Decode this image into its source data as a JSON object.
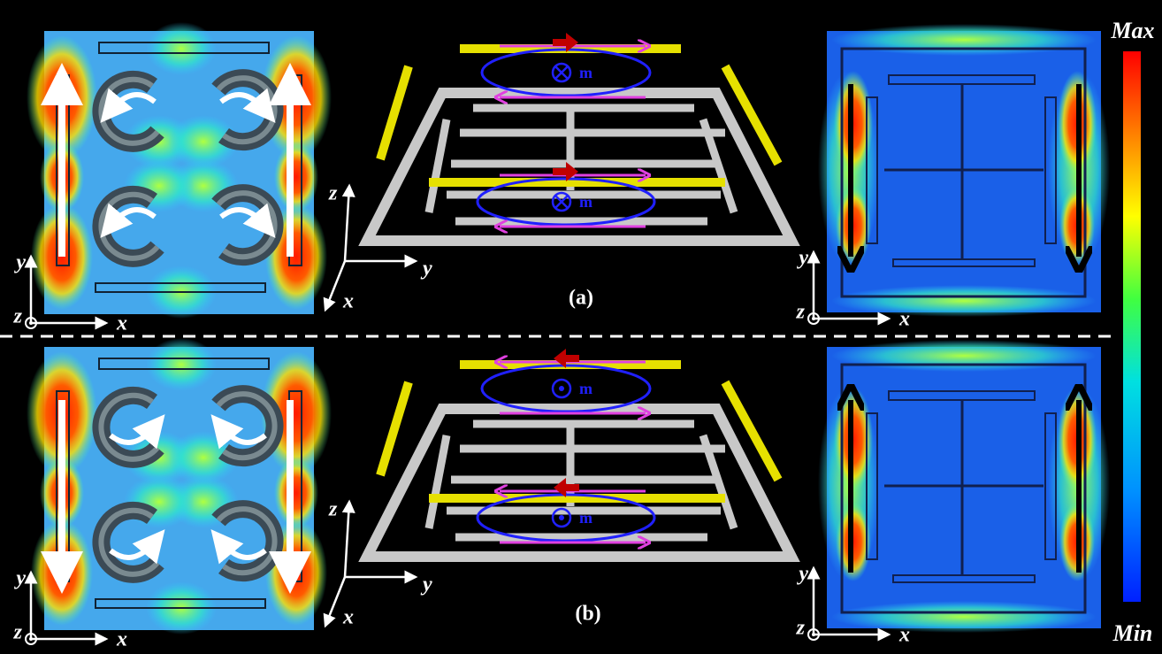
{
  "colorbar": {
    "max": "Max",
    "min": "Min"
  },
  "axis_labels": {
    "x": "x",
    "y": "y",
    "z": "z"
  },
  "moment_label": "m",
  "panels": [
    {
      "label": "(a)"
    },
    {
      "label": "(b)"
    }
  ]
}
